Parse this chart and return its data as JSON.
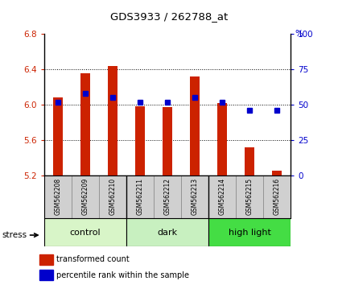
{
  "title": "GDS3933 / 262788_at",
  "samples": [
    "GSM562208",
    "GSM562209",
    "GSM562210",
    "GSM562211",
    "GSM562212",
    "GSM562213",
    "GSM562214",
    "GSM562215",
    "GSM562216"
  ],
  "red_values": [
    6.08,
    6.36,
    6.44,
    5.98,
    5.97,
    6.32,
    6.02,
    5.52,
    5.25
  ],
  "blue_values": [
    52,
    58,
    55,
    52,
    52,
    55,
    52,
    46,
    46
  ],
  "ylim_left": [
    5.2,
    6.8
  ],
  "ylim_right": [
    0,
    100
  ],
  "yticks_left": [
    5.2,
    5.6,
    6.0,
    6.4,
    6.8
  ],
  "yticks_right": [
    0,
    25,
    50,
    75,
    100
  ],
  "groups": [
    {
      "label": "control",
      "start": 0,
      "end": 3,
      "color": "#d8f5c8"
    },
    {
      "label": "dark",
      "start": 3,
      "end": 6,
      "color": "#c8f0c0"
    },
    {
      "label": "high light",
      "start": 6,
      "end": 9,
      "color": "#44dd44"
    }
  ],
  "bar_color": "#cc2200",
  "dot_color": "#0000cc",
  "bar_bottom": 5.2,
  "legend_red": "transformed count",
  "legend_blue": "percentile rank within the sample",
  "stress_label": "stress",
  "left_axis_color": "#cc2200",
  "right_axis_color": "#0000cc",
  "grid_yticks": [
    5.6,
    6.0,
    6.4
  ],
  "bar_width": 0.35
}
